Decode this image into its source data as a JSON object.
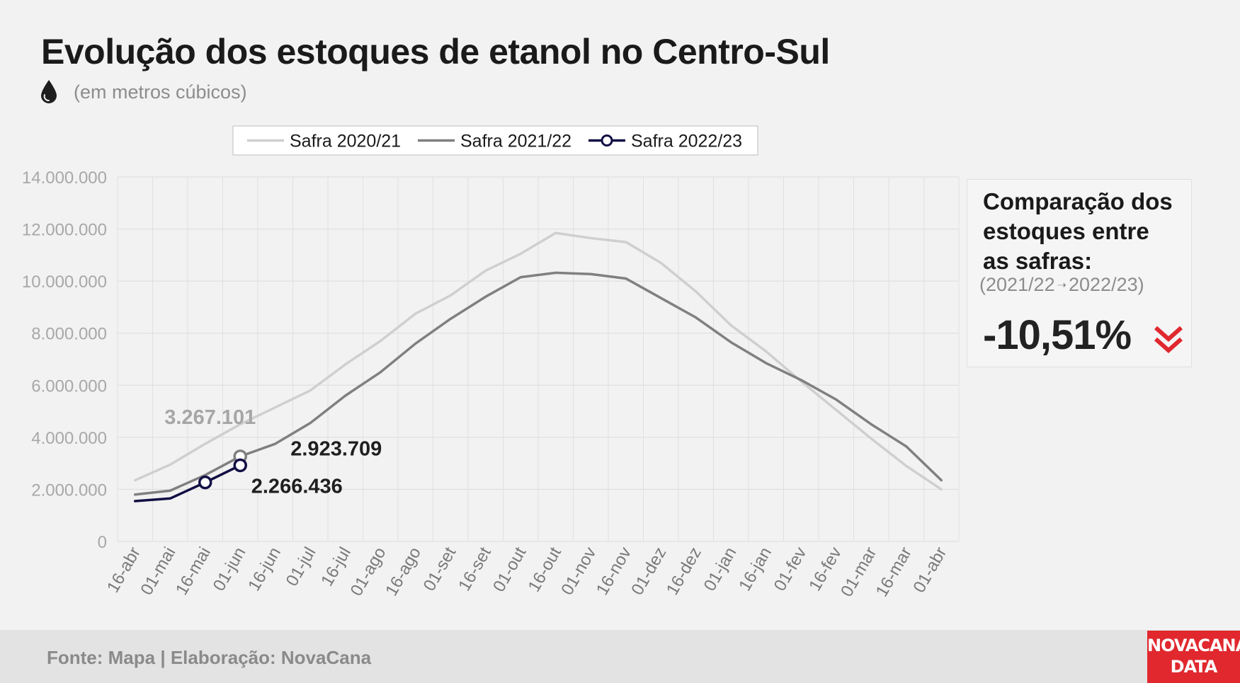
{
  "title": "Evolução dos estoques de etanol no Centro-Sul",
  "subtitle": "(em metros cúbicos)",
  "comparison": {
    "title_lines": [
      "Comparação dos",
      "estoques entre",
      "as safras:"
    ],
    "from": "(2021/22",
    "arrow": "➝",
    "to": "2022/23)",
    "value": "-10,51%",
    "direction_icon": "double-chevron-down-icon",
    "accent_color": "#e0282e"
  },
  "source": "Fonte: Mapa | Elaboração: NovaCana",
  "logo_lines": [
    "NOVACANA",
    "DATA"
  ],
  "chart_data": {
    "type": "line",
    "categories": [
      "16-abr",
      "01-mai",
      "16-mai",
      "01-jun",
      "16-jun",
      "01-jul",
      "16-jul",
      "01-ago",
      "16-ago",
      "01-set",
      "16-set",
      "01-out",
      "16-out",
      "01-nov",
      "16-nov",
      "01-dez",
      "16-dez",
      "01-jan",
      "16-jan",
      "01-fev",
      "16-fev",
      "01-mar",
      "16-mar",
      "01-abr"
    ],
    "ylim": [
      0,
      14000000
    ],
    "yticks": [
      0,
      2000000,
      4000000,
      6000000,
      8000000,
      10000000,
      12000000,
      14000000
    ],
    "ytick_labels": [
      "0",
      "2.000.000",
      "4.000.000",
      "6.000.000",
      "8.000.000",
      "10.000.000",
      "12.000.000",
      "14.000.000"
    ],
    "grid": true,
    "legend_position": "top",
    "series": [
      {
        "name": "Safra 2020/21",
        "color": "#cfcfcf",
        "x": [
          0,
          1,
          2,
          3,
          4,
          5,
          6,
          7,
          8,
          9,
          10,
          11,
          12,
          13,
          14,
          15,
          16,
          17,
          18,
          19,
          20,
          21,
          22,
          23
        ],
        "values": [
          2350000,
          2950000,
          3750000,
          4500000,
          5150000,
          5800000,
          6800000,
          7700000,
          8750000,
          9450000,
          10400000,
          11050000,
          11850000,
          11650000,
          11500000,
          10700000,
          9600000,
          8300000,
          7300000,
          6150000,
          5050000,
          3950000,
          2900000,
          2000000
        ]
      },
      {
        "name": "Safra 2021/22",
        "color": "#808080",
        "x": [
          0,
          1,
          2,
          3,
          4,
          5,
          6,
          7,
          8,
          9,
          10,
          11,
          12,
          13,
          14,
          15,
          16,
          17,
          18,
          19,
          20,
          21,
          22,
          23
        ],
        "values": [
          1800000,
          1950000,
          2550000,
          3267101,
          3750000,
          4550000,
          5600000,
          6500000,
          7600000,
          8550000,
          9400000,
          10150000,
          10320000,
          10270000,
          10100000,
          9350000,
          8600000,
          7650000,
          6850000,
          6200000,
          5450000,
          4500000,
          3650000,
          2350000
        ]
      },
      {
        "name": "Safra 2022/23",
        "color": "#120f45",
        "marker": "circle",
        "x": [
          0,
          1,
          2,
          3
        ],
        "values": [
          1550000,
          1650000,
          2266436,
          2923709
        ]
      }
    ],
    "annotations": [
      {
        "text": "3.267.101",
        "series": "Safra 2021/22",
        "category": "01-jun",
        "value": 3267101,
        "color": "#a6a6a6"
      },
      {
        "text": "2.923.709",
        "series": "Safra 2022/23",
        "category": "01-jun",
        "value": 2923709,
        "color": "#1f1f1f"
      },
      {
        "text": "2.266.436",
        "series": "Safra 2022/23",
        "category": "16-mai",
        "value": 2266436,
        "color": "#1f1f1f"
      }
    ]
  }
}
